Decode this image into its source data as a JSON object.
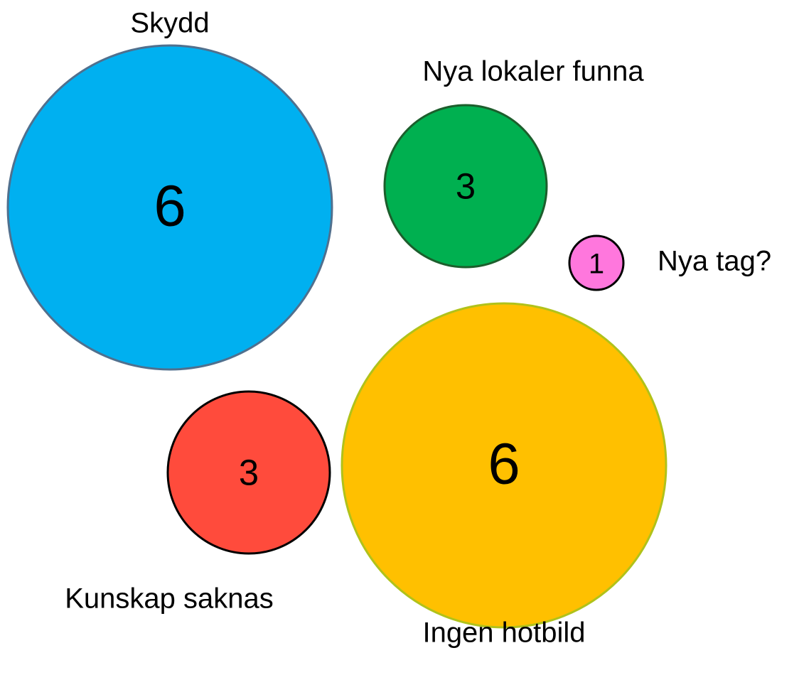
{
  "nodes": [
    {
      "label": "Skydd",
      "value": 6,
      "color": "#00b0f0",
      "stroke": "#50708e"
    },
    {
      "label": "Nya lokaler funna",
      "value": 3,
      "color": "#00b050",
      "stroke": "#1c5e2c"
    },
    {
      "label": "Nya tag?",
      "value": 1,
      "color": "#ff77dd",
      "stroke": "#000000"
    },
    {
      "label": "Ingen hotbild",
      "value": 6,
      "color": "#ffc000",
      "stroke": "#b0c21a"
    },
    {
      "label": "Kunskap saknas",
      "value": 3,
      "color": "#ff4b3c",
      "stroke": "#000000"
    }
  ]
}
